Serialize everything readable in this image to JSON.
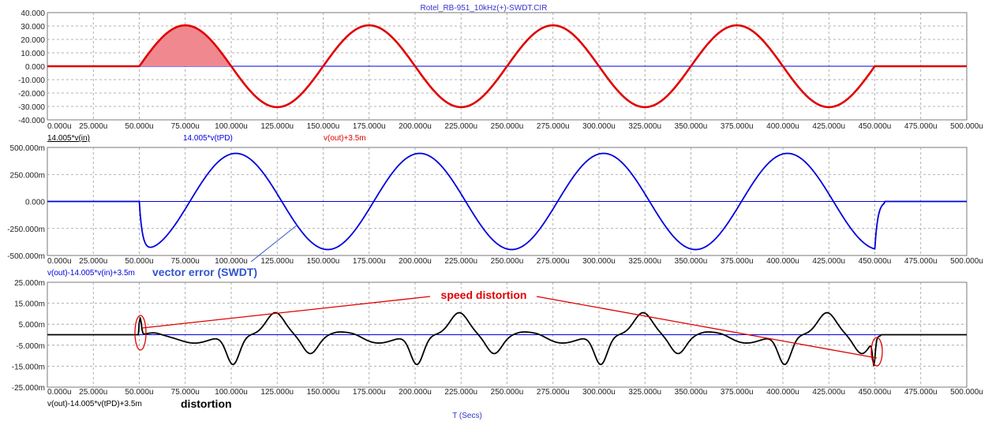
{
  "title": "Rotel_RB-951_10kHz(+)-SWDT.CIR",
  "x_axis_title": "T (Secs)",
  "colors": {
    "red": "#e00000",
    "blue": "#0000dd",
    "black": "#000000",
    "fill": "#f08890",
    "annotation": "#e00000",
    "label_blue": "#3355cc"
  },
  "annotations": {
    "vector_error": "vector error (SWDT)",
    "speed_distortion": "speed distortion",
    "distortion": "distortion"
  },
  "chart_data": [
    {
      "type": "line",
      "xlabel": "",
      "x_ticks": [
        "0.000u",
        "25.000u",
        "50.000u",
        "75.000u",
        "100.000u",
        "125.000u",
        "150.000u",
        "175.000u",
        "200.000u",
        "225.000u",
        "250.000u",
        "275.000u",
        "300.000u",
        "325.000u",
        "350.000u",
        "375.000u",
        "400.000u",
        "425.000u",
        "450.000u",
        "475.000u",
        "500.000u"
      ],
      "y_ticks": [
        "40.000",
        "30.000",
        "20.000",
        "10.000",
        "0.000",
        "-10.000",
        "-20.000",
        "-30.000",
        "-40.000"
      ],
      "xlim": [
        0,
        500
      ],
      "ylim": [
        -40,
        40
      ],
      "grid": true,
      "series": [
        {
          "name": "14.005*v(in)",
          "color": "#0000dd",
          "kind": "baseline",
          "value": 0
        },
        {
          "name": "14.005*v(tPD)",
          "color": "#0000dd",
          "kind": "baseline",
          "value": 0
        },
        {
          "name": "v(out)+3.5m",
          "color": "#e00000",
          "kind": "sine",
          "start": 50,
          "end": 450,
          "amplitude": 30.5,
          "period": 100,
          "phase": 0
        }
      ],
      "shaded_region": {
        "from": 50,
        "to": 100,
        "color": "#f08890"
      }
    },
    {
      "type": "line",
      "x_ticks": [
        "0.000u",
        "25.000u",
        "50.000u",
        "75.000u",
        "100.000u",
        "125.000u",
        "150.000u",
        "175.000u",
        "200.000u",
        "225.000u",
        "250.000u",
        "275.000u",
        "300.000u",
        "325.000u",
        "350.000u",
        "375.000u",
        "400.000u",
        "425.000u",
        "450.000u",
        "475.000u",
        "500.000u"
      ],
      "y_ticks": [
        "500.000m",
        "250.000m",
        "0.000",
        "-250.000m",
        "-500.000m"
      ],
      "xlim": [
        0,
        500
      ],
      "ylim": [
        -500,
        500
      ],
      "grid": true,
      "series": [
        {
          "name": "v(out)-14.005*v(in)+3.5m",
          "color": "#0000dd",
          "kind": "error",
          "start": 50,
          "end": 450,
          "amplitude": 445,
          "period": 100,
          "phase_shift": 2.5
        }
      ]
    },
    {
      "type": "line",
      "x_ticks": [
        "0.000u",
        "25.000u",
        "50.000u",
        "75.000u",
        "100.000u",
        "125.000u",
        "150.000u",
        "175.000u",
        "200.000u",
        "225.000u",
        "250.000u",
        "275.000u",
        "300.000u",
        "325.000u",
        "350.000u",
        "375.000u",
        "400.000u",
        "425.000u",
        "450.000u",
        "475.000u",
        "500.000u"
      ],
      "y_ticks": [
        "25.000m",
        "15.000m",
        "5.000m",
        "-5.000m",
        "-15.000m",
        "-25.000m"
      ],
      "xlim": [
        0,
        500
      ],
      "ylim": [
        -25,
        25
      ],
      "grid": true,
      "series": [
        {
          "name": "v(out)-14.005*v(tPD)+3.5m",
          "color": "#000000",
          "kind": "distortion",
          "start": 50,
          "end": 450
        }
      ]
    }
  ]
}
